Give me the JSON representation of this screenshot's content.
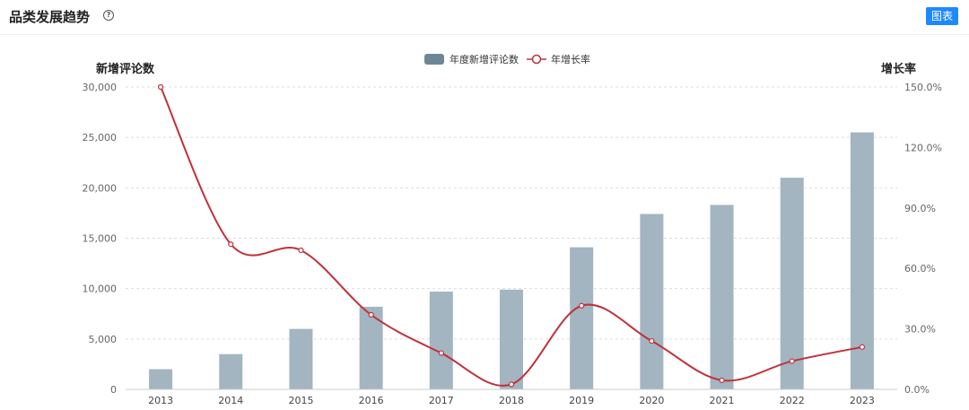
{
  "header": {
    "title": "品类发展趋势",
    "help_glyph": "?",
    "chart_button": "图表"
  },
  "colors": {
    "bar": "#a2b5c1",
    "line": "#c0303b",
    "grid": "#dddddd",
    "axis_text": "#666666",
    "accent": "#1e88ff"
  },
  "chart_data": {
    "type": "bar",
    "title": "",
    "categories": [
      "2013",
      "2014",
      "2015",
      "2016",
      "2017",
      "2018",
      "2019",
      "2020",
      "2021",
      "2022",
      "2023"
    ],
    "ylabel": "新增评论数",
    "y2label": "增长率",
    "ylim": [
      0,
      30000
    ],
    "y2lim": [
      0,
      150
    ],
    "yticks": [
      "0",
      "5,000",
      "10,000",
      "15,000",
      "20,000",
      "25,000",
      "30,000"
    ],
    "y2ticks": [
      "0.0%",
      "30.0%",
      "60.0%",
      "90.0%",
      "120.0%",
      "150.0%"
    ],
    "legend_position": "top-center",
    "grid": true,
    "series": [
      {
        "name": "年度新增评论数",
        "type": "bar",
        "axis": "left",
        "values": [
          2000,
          3500,
          6000,
          8200,
          9700,
          9900,
          14100,
          17400,
          18300,
          21000,
          25500
        ]
      },
      {
        "name": "年增长率",
        "type": "line",
        "axis": "right",
        "smooth": true,
        "values": [
          150,
          72,
          69,
          37,
          18,
          2.5,
          41.5,
          24,
          4.5,
          14,
          21
        ]
      }
    ]
  }
}
